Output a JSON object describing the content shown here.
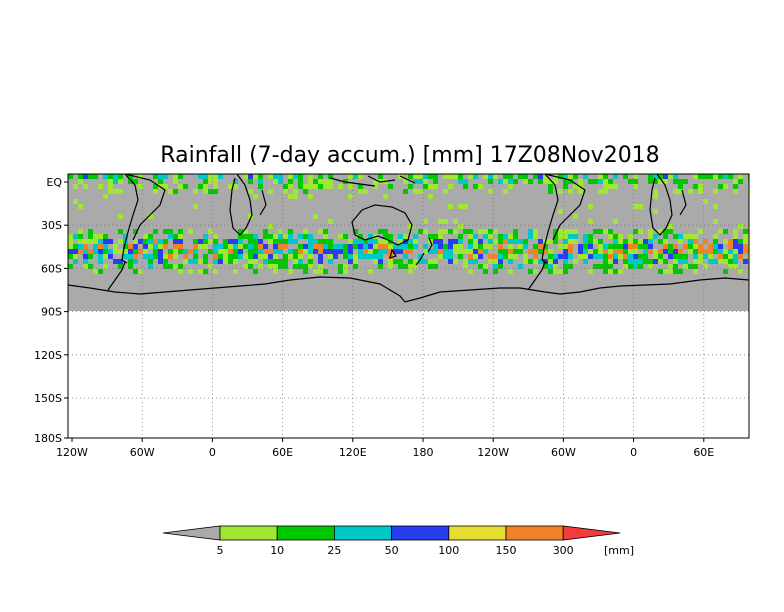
{
  "map": {
    "title": "Rainfall (7-day accum.) [mm] 17Z08Nov2018",
    "lat_ticks": [
      "EQ",
      "30S",
      "60S",
      "90S",
      "120S",
      "150S",
      "180S"
    ],
    "lon_ticks": [
      "120W",
      "60W",
      "0",
      "60E",
      "120E",
      "180",
      "120W",
      "60W",
      "0",
      "60E"
    ],
    "land_color": "#aaaaaa",
    "grid": "dotted"
  },
  "colorbar": {
    "unit": "[mm]",
    "levels": [
      "5",
      "10",
      "25",
      "50",
      "100",
      "150",
      "300"
    ],
    "colors": [
      "#aaaaaa",
      "#a0e632",
      "#00c800",
      "#00c8c8",
      "#2a3cf0",
      "#e6dc32",
      "#f08228",
      "#f03c3c"
    ]
  }
}
